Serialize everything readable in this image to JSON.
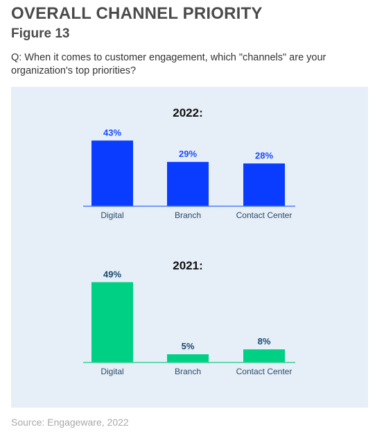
{
  "header": {
    "title": "OVERALL CHANNEL PRIORITY",
    "figure": "Figure 13",
    "question": "Q: When it comes to customer engagement, which \"channels\" are your organization's top priorities?"
  },
  "footer": {
    "source": "Source: Engageware, 2022"
  },
  "colors": {
    "panel_bg": "#e6eef8",
    "bar_2022": "#0a3cff",
    "label_2022": "#1a4cff",
    "bar_2021": "#00d084",
    "label_2021": "#1a4a6e",
    "axis_2022": "#4f7cff",
    "axis_2021": "#3dcf9a",
    "category_text": "#2b4a66"
  },
  "chart_data": [
    {
      "type": "bar",
      "title": "2022:",
      "categories": [
        "Digital",
        "Branch",
        "Contact Center"
      ],
      "values": [
        43,
        29,
        28
      ],
      "value_labels": [
        "43%",
        "29%",
        "28%"
      ],
      "ylim": [
        0,
        50
      ],
      "grid": false,
      "legend": "none"
    },
    {
      "type": "bar",
      "title": "2021:",
      "categories": [
        "Digital",
        "Branch",
        "Contact Center"
      ],
      "values": [
        49,
        5,
        8
      ],
      "value_labels": [
        "49%",
        "5%",
        "8%"
      ],
      "ylim": [
        0,
        50
      ],
      "grid": false,
      "legend": "none"
    }
  ]
}
